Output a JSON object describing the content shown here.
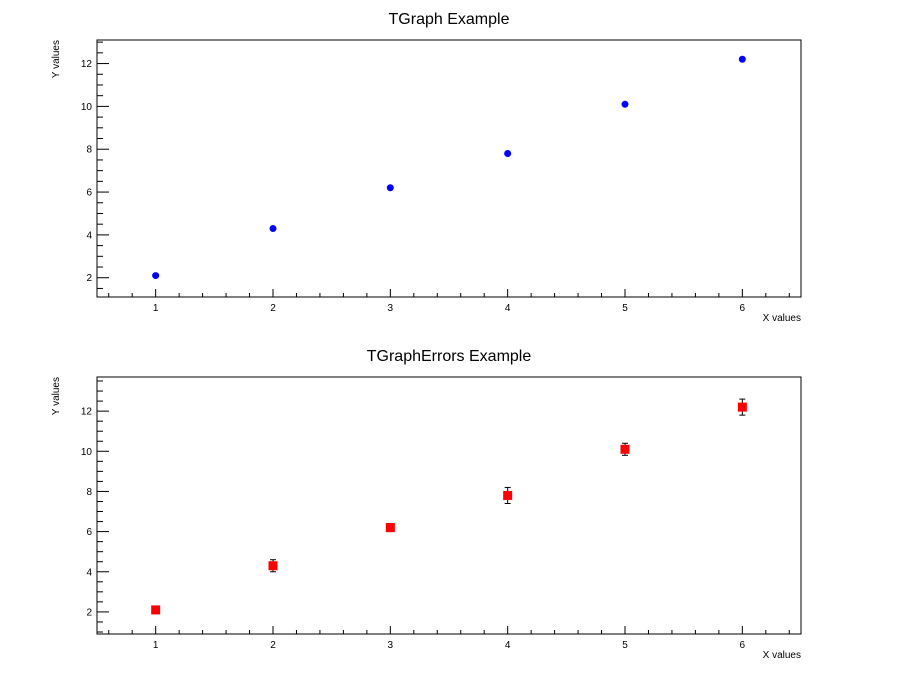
{
  "chart_data": [
    {
      "type": "scatter",
      "title": "TGraph Example",
      "xlabel": "X values",
      "ylabel": "Y values",
      "xlim": [
        0.5,
        6.5
      ],
      "ylim": [
        1.1,
        13.1
      ],
      "xticks": [
        1,
        2,
        3,
        4,
        5,
        6
      ],
      "yticks": [
        2,
        4,
        6,
        8,
        10,
        12
      ],
      "marker": "circle",
      "color": "#0000ff",
      "series": [
        {
          "x": [
            1,
            2,
            3,
            4,
            5,
            6
          ],
          "y": [
            2.1,
            4.3,
            6.2,
            7.8,
            10.1,
            12.2
          ]
        }
      ]
    },
    {
      "type": "scatter",
      "title": "TGraphErrors Example",
      "xlabel": "X values",
      "ylabel": "Y values",
      "xlim": [
        0.5,
        6.5
      ],
      "ylim": [
        0.9,
        13.7
      ],
      "xticks": [
        1,
        2,
        3,
        4,
        5,
        6
      ],
      "yticks": [
        2,
        4,
        6,
        8,
        10,
        12
      ],
      "marker": "square",
      "color": "#ff0000",
      "error_color": "#000000",
      "series": [
        {
          "x": [
            1,
            2,
            3,
            4,
            5,
            6
          ],
          "y": [
            2.1,
            4.3,
            6.2,
            7.8,
            10.1,
            12.2
          ],
          "yerr": [
            0.1,
            0.3,
            0.2,
            0.4,
            0.3,
            0.4
          ]
        }
      ]
    }
  ]
}
